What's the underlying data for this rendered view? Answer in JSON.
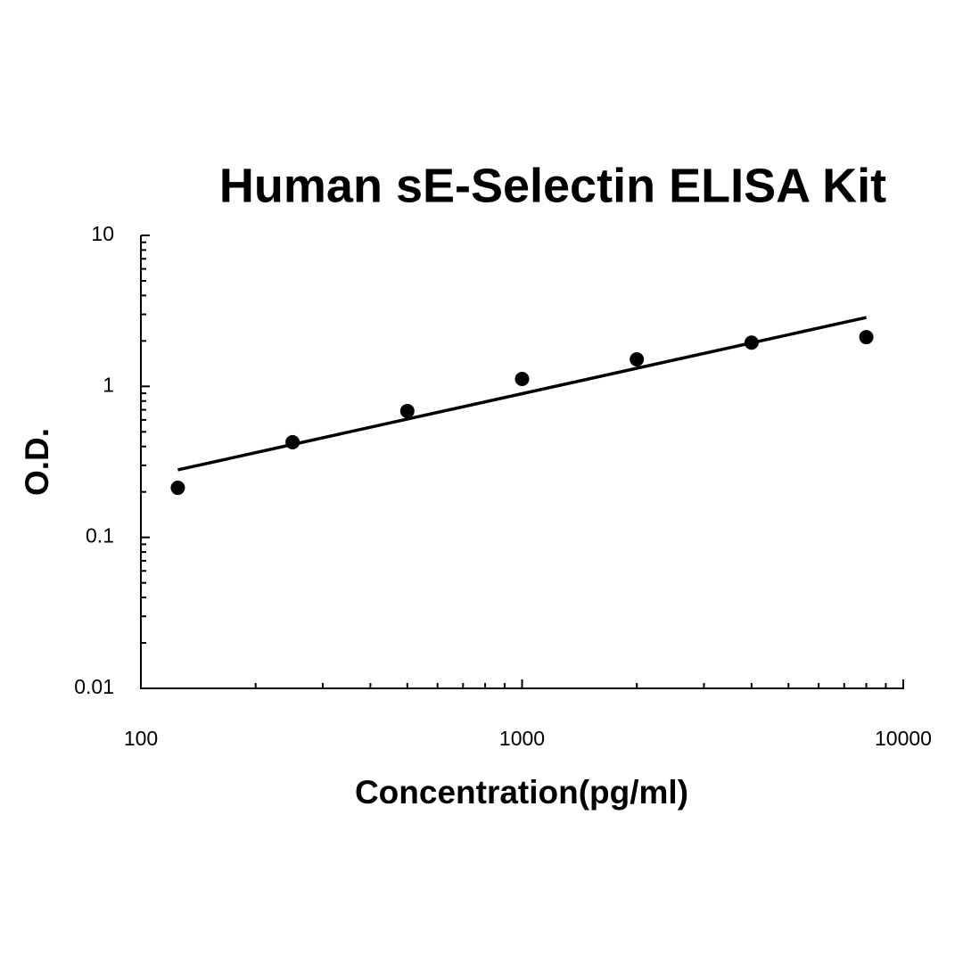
{
  "chart_data": {
    "type": "scatter",
    "title": "Human sE-Selectin ELISA Kit",
    "x_label": "Concentration(pg/ml)",
    "y_label": "O.D.",
    "x": [
      125,
      250,
      500,
      1000,
      2000,
      4000,
      8000
    ],
    "values": [
      0.213,
      0.427,
      0.687,
      1.12,
      1.51,
      1.95,
      2.12
    ],
    "color": "#000000",
    "trend": {
      "x": [
        125,
        8000
      ],
      "values": [
        0.28,
        2.86
      ]
    },
    "x_log": true,
    "y_log": true,
    "xlim": [
      100,
      10000
    ],
    "ylim": [
      0.01,
      10
    ],
    "xticks": [
      100,
      1000,
      10000
    ],
    "yticks": [
      0.01,
      0.1,
      1,
      10
    ],
    "xminorticks": [
      200,
      300,
      400,
      500,
      600,
      700,
      800,
      900,
      2000,
      3000,
      4000,
      5000,
      6000,
      7000,
      8000,
      9000
    ],
    "yminorticks": [
      0.02,
      0.03,
      0.04,
      0.05,
      0.06,
      0.07,
      0.08,
      0.09,
      0.2,
      0.3,
      0.4,
      0.5,
      0.6,
      0.7,
      0.8,
      0.9,
      2,
      3,
      4,
      5,
      6,
      7,
      8,
      9
    ]
  }
}
